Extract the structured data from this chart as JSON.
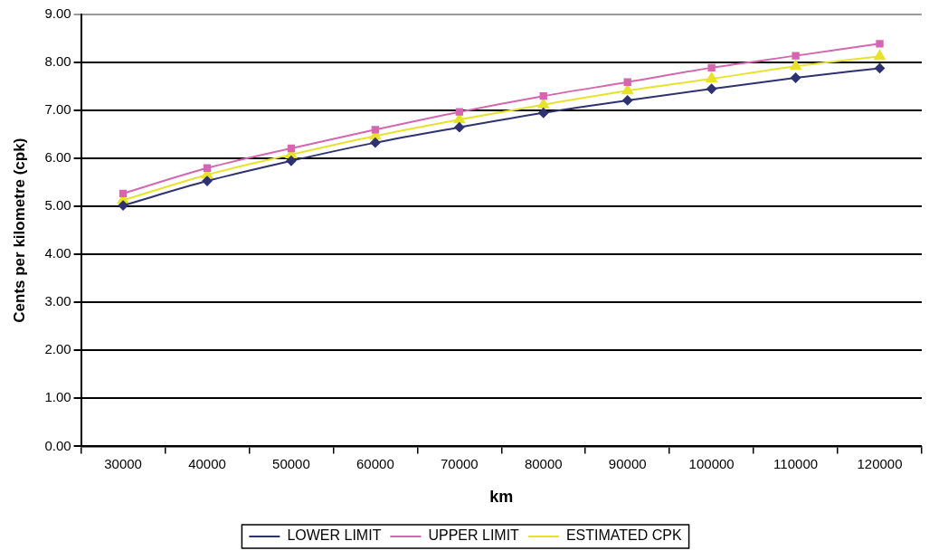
{
  "chart_data": {
    "type": "line",
    "xlabel": "km",
    "ylabel": "Cents per kilometre (cpk)",
    "categories": [
      "30000",
      "40000",
      "50000",
      "60000",
      "70000",
      "80000",
      "90000",
      "100000",
      "110000",
      "120000"
    ],
    "series": [
      {
        "name": "LOWER LIMIT",
        "color": "#2e3270",
        "marker": "diamond",
        "values": [
          5.02,
          5.53,
          5.95,
          6.33,
          6.65,
          6.95,
          7.21,
          7.45,
          7.68,
          7.88
        ]
      },
      {
        "name": "UPPER LIMIT",
        "color": "#d467b0",
        "marker": "square",
        "values": [
          5.27,
          5.8,
          6.21,
          6.6,
          6.97,
          7.3,
          7.59,
          7.89,
          8.14,
          8.39
        ]
      },
      {
        "name": "ESTIMATED CPK",
        "color": "#e8e32a",
        "marker": "triangle",
        "values": [
          5.13,
          5.66,
          6.08,
          6.47,
          6.81,
          7.12,
          7.41,
          7.66,
          7.92,
          8.13
        ]
      }
    ],
    "ylim": [
      0,
      9
    ],
    "yticks": [
      {
        "value": 0,
        "label": "0.00"
      },
      {
        "value": 1,
        "label": "1.00"
      },
      {
        "value": 2,
        "label": "2.00"
      },
      {
        "value": 3,
        "label": "3.00"
      },
      {
        "value": 4,
        "label": "4.00"
      },
      {
        "value": 5,
        "label": "5.00"
      },
      {
        "value": 6,
        "label": "6.00"
      },
      {
        "value": 7,
        "label": "7.00"
      },
      {
        "value": 8,
        "label": "8.00"
      },
      {
        "value": 9,
        "label": "9.00"
      }
    ],
    "grid": "y",
    "legend": "bottom",
    "line_style": "solid"
  }
}
